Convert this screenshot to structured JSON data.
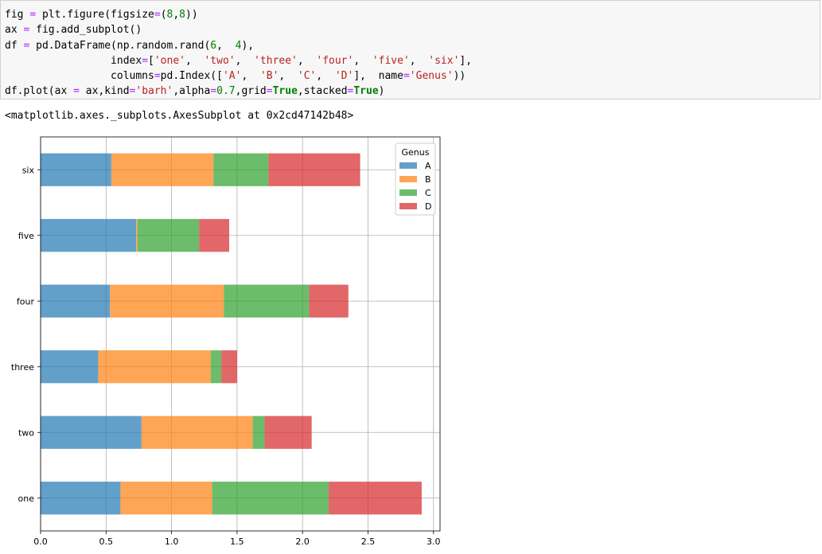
{
  "code_cell": {
    "lines": [
      [
        [
          "",
          "fig "
        ],
        [
          "op",
          "="
        ],
        [
          "",
          " plt.figure(figsize"
        ],
        [
          "op",
          "="
        ],
        [
          "",
          "("
        ],
        [
          "num",
          "8"
        ],
        [
          "",
          ","
        ],
        [
          "num",
          "8"
        ],
        [
          "",
          "))"
        ]
      ],
      [
        [
          "",
          "ax "
        ],
        [
          "op",
          "="
        ],
        [
          "",
          " fig.add_subplot()"
        ]
      ],
      [
        [
          "",
          "df "
        ],
        [
          "op",
          "="
        ],
        [
          "",
          " pd.DataFrame(np.random.rand("
        ],
        [
          "num",
          "6"
        ],
        [
          "",
          ",  "
        ],
        [
          "num",
          "4"
        ],
        [
          "",
          "),"
        ]
      ],
      [
        [
          "",
          "                 index"
        ],
        [
          "op",
          "="
        ],
        [
          "",
          "["
        ],
        [
          "str",
          "'one'"
        ],
        [
          "",
          ",  "
        ],
        [
          "str",
          "'two'"
        ],
        [
          "",
          ",  "
        ],
        [
          "str",
          "'three'"
        ],
        [
          "",
          ",  "
        ],
        [
          "str",
          "'four'"
        ],
        [
          "",
          ",  "
        ],
        [
          "str",
          "'five'"
        ],
        [
          "",
          ",  "
        ],
        [
          "str",
          "'six'"
        ],
        [
          "",
          "],"
        ]
      ],
      [
        [
          "",
          "                 columns"
        ],
        [
          "op",
          "="
        ],
        [
          "",
          "pd.Index(["
        ],
        [
          "str",
          "'A'"
        ],
        [
          "",
          ",  "
        ],
        [
          "str",
          "'B'"
        ],
        [
          "",
          ",  "
        ],
        [
          "str",
          "'C'"
        ],
        [
          "",
          ",  "
        ],
        [
          "str",
          "'D'"
        ],
        [
          "",
          "],  name"
        ],
        [
          "op",
          "="
        ],
        [
          "str",
          "'Genus'"
        ],
        [
          "",
          "))"
        ]
      ],
      [
        [
          "",
          "df.plot(ax "
        ],
        [
          "op",
          "="
        ],
        [
          "",
          " ax,kind"
        ],
        [
          "op",
          "="
        ],
        [
          "str",
          "'barh'"
        ],
        [
          "",
          ",alpha"
        ],
        [
          "op",
          "="
        ],
        [
          "num",
          "0.7"
        ],
        [
          "",
          ",grid"
        ],
        [
          "op",
          "="
        ],
        [
          "kw",
          "True"
        ],
        [
          "",
          ",stacked"
        ],
        [
          "op",
          "="
        ],
        [
          "kw",
          "True"
        ],
        [
          "",
          ")"
        ]
      ]
    ]
  },
  "output_text": "<matplotlib.axes._subplots.AxesSubplot at 0x2cd47142b48>",
  "chart_data": {
    "type": "bar",
    "orientation": "horizontal",
    "stacked": true,
    "categories": [
      "one",
      "two",
      "three",
      "four",
      "five",
      "six"
    ],
    "series": [
      {
        "name": "A",
        "color": "#1f77b4",
        "values": [
          0.61,
          0.77,
          0.44,
          0.53,
          0.73,
          0.54
        ]
      },
      {
        "name": "B",
        "color": "#ff7f0e",
        "values": [
          0.7,
          0.85,
          0.86,
          0.87,
          0.01,
          0.78
        ]
      },
      {
        "name": "C",
        "color": "#2ca02c",
        "values": [
          0.89,
          0.09,
          0.08,
          0.65,
          0.47,
          0.42
        ]
      },
      {
        "name": "D",
        "color": "#d62728",
        "values": [
          0.71,
          0.36,
          0.12,
          0.3,
          0.23,
          0.7
        ]
      }
    ],
    "alpha": 0.7,
    "xlim": [
      0,
      3.05
    ],
    "xticks": [
      0.0,
      0.5,
      1.0,
      1.5,
      2.0,
      2.5,
      3.0
    ],
    "xtick_labels": [
      "0.0",
      "0.5",
      "1.0",
      "1.5",
      "2.0",
      "2.5",
      "3.0"
    ],
    "grid": true,
    "legend_title": "Genus",
    "legend_position": "upper right"
  }
}
